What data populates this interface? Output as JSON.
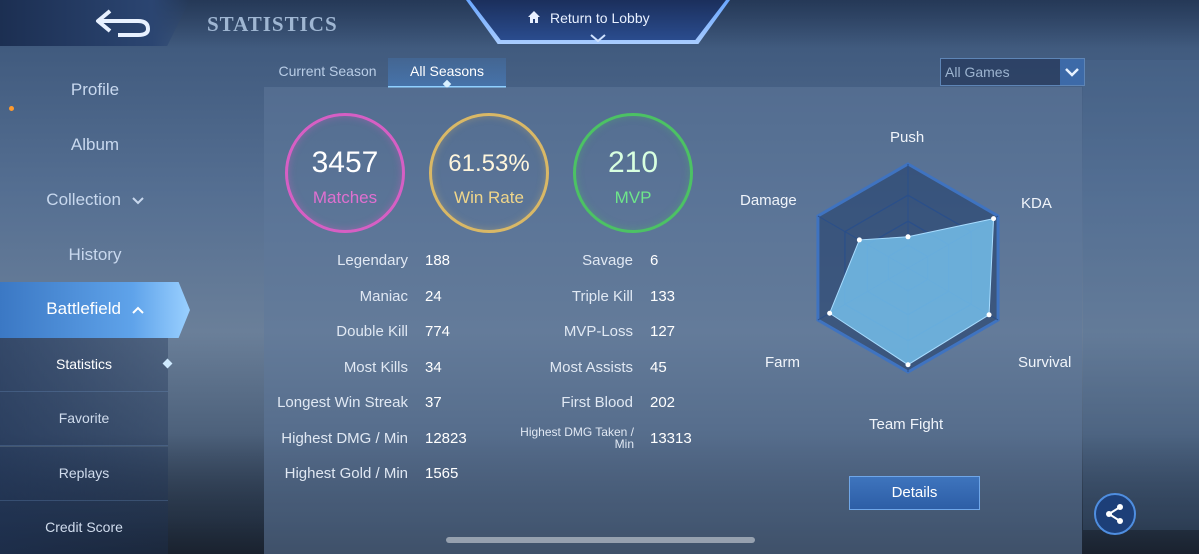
{
  "header": {
    "title": "STATISTICS",
    "lobby_label": "Return to Lobby"
  },
  "sidebar": {
    "items": [
      {
        "label": "Profile"
      },
      {
        "label": "Album"
      },
      {
        "label": "Collection"
      },
      {
        "label": "History"
      },
      {
        "label": "Battlefield"
      }
    ],
    "subitems": [
      {
        "label": "Statistics"
      },
      {
        "label": "Favorite"
      },
      {
        "label": "Replays"
      },
      {
        "label": "Credit Score"
      }
    ]
  },
  "tabs": [
    {
      "label": "Current Season"
    },
    {
      "label": "All Seasons"
    }
  ],
  "filter": {
    "selected": "All Games"
  },
  "summary": {
    "matches": {
      "value": "3457",
      "label": "Matches"
    },
    "winrate": {
      "value": "61.53%",
      "label": "Win Rate"
    },
    "mvp": {
      "value": "210",
      "label": "MVP"
    }
  },
  "stats_left": [
    {
      "label": "Legendary",
      "value": "188"
    },
    {
      "label": "Maniac",
      "value": "24"
    },
    {
      "label": "Double Kill",
      "value": "774"
    },
    {
      "label": "Most Kills",
      "value": "34"
    },
    {
      "label": "Longest Win Streak",
      "value": "37"
    },
    {
      "label": "Highest DMG / Min",
      "value": "12823"
    },
    {
      "label": "Highest Gold / Min",
      "value": "1565"
    }
  ],
  "stats_right": [
    {
      "label": "Savage",
      "value": "6"
    },
    {
      "label": "Triple Kill",
      "value": "133"
    },
    {
      "label": "MVP-Loss",
      "value": "127"
    },
    {
      "label": "Most Assists",
      "value": "45"
    },
    {
      "label": "First Blood",
      "value": "202"
    },
    {
      "label": "Highest DMG Taken / Min",
      "value": "13313"
    }
  ],
  "radar": {
    "labels": {
      "push": "Push",
      "kda": "KDA",
      "survival": "Survival",
      "teamfight": "Team Fight",
      "farm": "Farm",
      "damage": "Damage"
    },
    "levels": {
      "push": 0.3,
      "kda": 0.95,
      "survival": 0.9,
      "teamfight": 0.93,
      "farm": 0.87,
      "damage": 0.54
    }
  },
  "details_label": "Details",
  "colors": {
    "matches": "#d65fc4",
    "winrate": "#d9b866",
    "mvp": "#4cc264",
    "accent": "#5fa3ea"
  }
}
